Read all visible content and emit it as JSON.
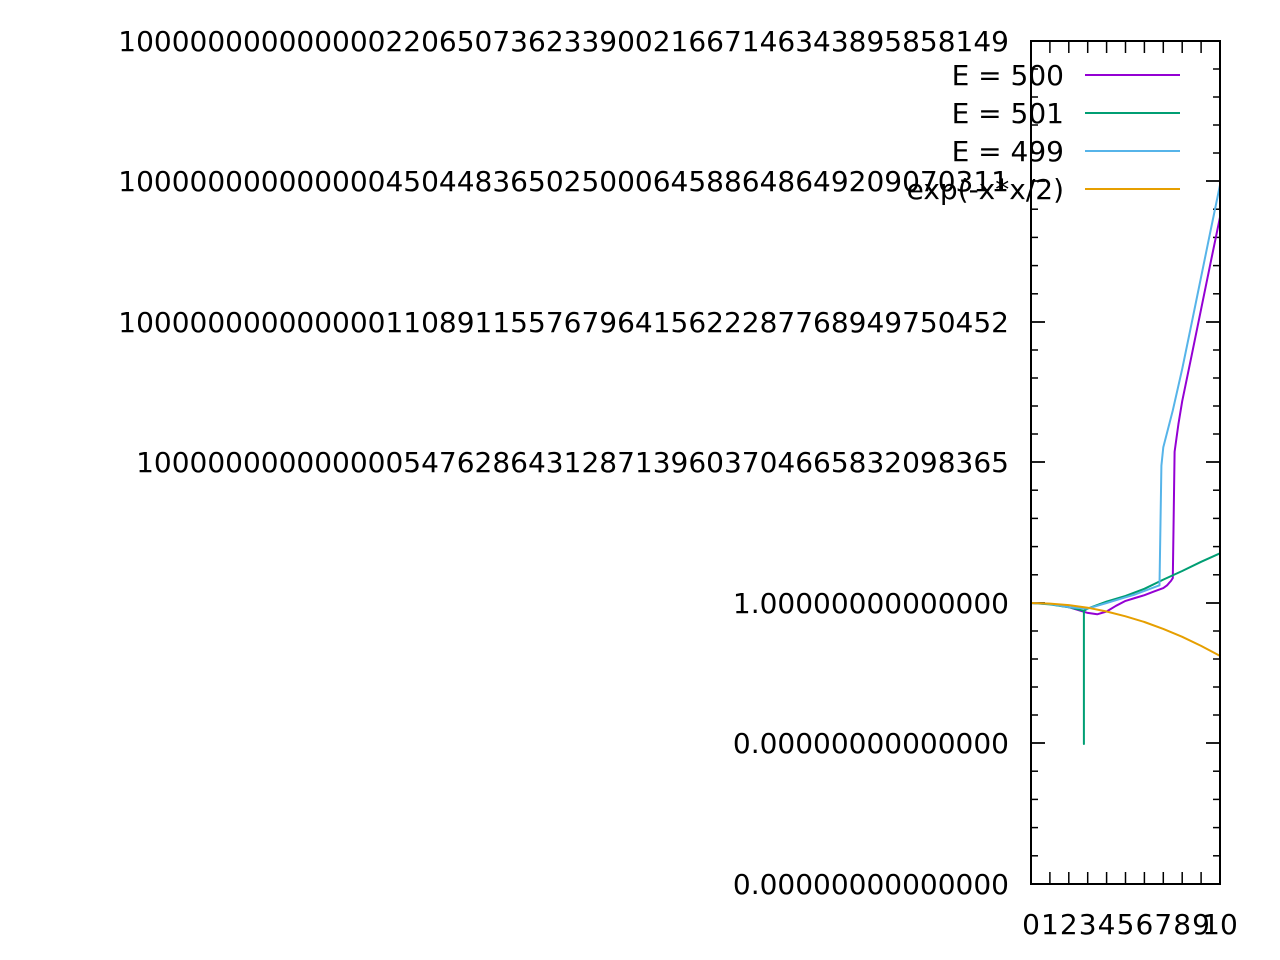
{
  "chart_data": {
    "type": "line",
    "title": "",
    "xlabel": "",
    "ylabel": "",
    "xlim": [
      0,
      10
    ],
    "y_scale": "log",
    "grid": false,
    "legend_position": "top-right",
    "x_tick_labels": [
      "0",
      "1",
      "2",
      "3",
      "4",
      "5",
      "6",
      "7",
      "8",
      "9",
      "10"
    ],
    "y_tick_labels": [
      "0.00000000000000",
      "0.00000000000000",
      "1.00000000000000",
      "10000000000000054762864312871396037046658320983​65",
      "10000000000000011089115576796415622287768949750452",
      "10000000000000045044836502500064588648649209070311",
      "10000000000000022065073623390021667146343895858149"
    ],
    "colors": {
      "E = 500": "#9400d3",
      "E = 501": "#009e73",
      "E = 499": "#56b4e9",
      "exp(-x*x/2)": "#e69f00"
    },
    "series": [
      {
        "name": "E = 500",
        "x": [
          0,
          1,
          2,
          3,
          3.5,
          4,
          4.5,
          5,
          5.5,
          6,
          6.5,
          7,
          7.2,
          7.3,
          7.4,
          7.5,
          7.6,
          7.7,
          7.8,
          8,
          8.5,
          9,
          9.5,
          10
        ],
        "log10y": [
          0,
          -0.007,
          -0.03,
          -0.07,
          -0.08,
          -0.06,
          -0.02,
          0.03,
          0.07,
          0.11,
          0.16,
          0.21,
          0.25,
          0.28,
          0.31,
          0.35,
          2.9,
          3.2,
          3.5,
          4.0,
          5.0,
          6.0,
          7.0,
          8.0
        ]
      },
      {
        "name": "E = 501",
        "x": [
          0,
          1,
          2,
          2.8,
          2.8,
          2.8,
          3,
          4,
          5,
          6,
          7,
          8,
          9,
          10
        ],
        "log10y": [
          0,
          -0.01,
          -0.03,
          -0.055,
          -1.0,
          -0.055,
          -0.04,
          0.02,
          0.1,
          0.2,
          0.33,
          0.45,
          0.58,
          0.7
        ]
      },
      {
        "name": "E = 499",
        "x": [
          0,
          1,
          2,
          3,
          4,
          5,
          5.5,
          6,
          6.5,
          6.8,
          6.9,
          7,
          7.5,
          8,
          8.5,
          9,
          9.5,
          10
        ],
        "log10y": [
          0,
          -0.007,
          -0.03,
          -0.04,
          0.0,
          0.08,
          0.12,
          0.17,
          0.22,
          0.25,
          2.6,
          3.0,
          3.8,
          4.7,
          5.7,
          6.7,
          7.7,
          8.7
        ]
      },
      {
        "name": "exp(-x*x/2)",
        "x": [
          0,
          1,
          2,
          3,
          4,
          5,
          6,
          7,
          8,
          9,
          10
        ],
        "log10y": [
          0,
          -0.004,
          -0.015,
          -0.033,
          -0.06,
          -0.094,
          -0.135,
          -0.184,
          -0.24,
          -0.304,
          -0.375
        ]
      }
    ]
  }
}
